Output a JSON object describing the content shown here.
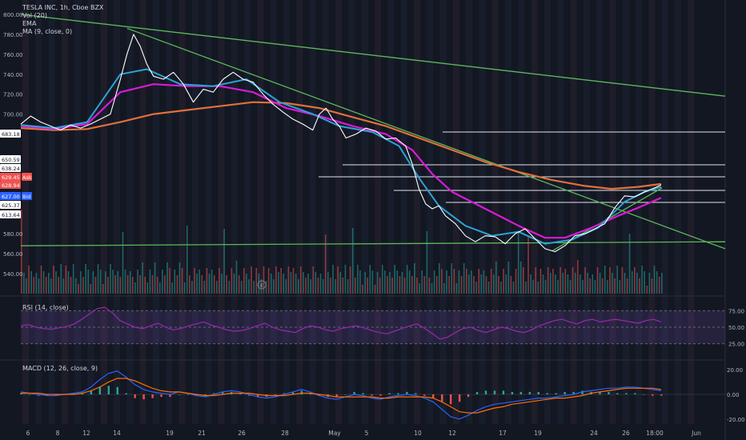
{
  "legend": {
    "title": "TESLA INC, 1h, Cboe BZX",
    "vol": "Vol (20)",
    "ema": "EMA",
    "ma": "MA (9, close, 0)",
    "rsi": "RSI (14, close)",
    "macd": "MACD (12, 26, close, 9)"
  },
  "colors": {
    "background": "#131722",
    "trendline": "#5cb85c",
    "ema": "#e0703a",
    "sma_magenta": "#d81bd6",
    "sma_blue": "#2ca3d6",
    "price_white": "#ffffff",
    "volume_up": "#26a69a",
    "volume_down": "#ef5350",
    "rsi": "#9c27b0",
    "macd": "#2962ff",
    "signal": "#ff6d00"
  },
  "chart_data": [
    {
      "type": "line",
      "name": "price",
      "y_ticks": [
        800,
        780,
        760,
        740,
        720,
        700,
        580,
        560,
        540
      ],
      "x_ticks": [
        "6",
        "8",
        "12",
        "14",
        "19",
        "21",
        "26",
        "28",
        "May",
        "5",
        "10",
        "12",
        "17",
        "19",
        "24",
        "26",
        "18:00",
        "Jun"
      ],
      "price_labels": [
        {
          "text": "683.18",
          "style": "white"
        },
        {
          "text": "650.59",
          "style": "white"
        },
        {
          "text": "638.24",
          "style": "white"
        },
        {
          "text": "629.45",
          "style": "ask"
        },
        {
          "text": "Ask",
          "style": "ask_badge"
        },
        {
          "text": "628.94",
          "style": "red"
        },
        {
          "text": "627.00",
          "style": "bid"
        },
        {
          "text": "Bid",
          "style": "bid_badge"
        },
        {
          "text": "625.37",
          "style": "white"
        },
        {
          "text": "613.64",
          "style": "white"
        }
      ],
      "close_path": [
        [
          0,
          690
        ],
        [
          3,
          698
        ],
        [
          6,
          692
        ],
        [
          9,
          688
        ],
        [
          12,
          684
        ],
        [
          15,
          689
        ],
        [
          18,
          686
        ],
        [
          21,
          690
        ],
        [
          24,
          695
        ],
        [
          27,
          700
        ],
        [
          30,
          735
        ],
        [
          32,
          760
        ],
        [
          34,
          780
        ],
        [
          36,
          768
        ],
        [
          38,
          750
        ],
        [
          40,
          738
        ],
        [
          43,
          735
        ],
        [
          46,
          742
        ],
        [
          49,
          730
        ],
        [
          52,
          712
        ],
        [
          55,
          725
        ],
        [
          58,
          722
        ],
        [
          61,
          735
        ],
        [
          64,
          742
        ],
        [
          67,
          735
        ],
        [
          70,
          732
        ],
        [
          73,
          720
        ],
        [
          76,
          710
        ],
        [
          79,
          702
        ],
        [
          82,
          695
        ],
        [
          85,
          690
        ],
        [
          88,
          684
        ],
        [
          90,
          700
        ],
        [
          92,
          706
        ],
        [
          94,
          695
        ],
        [
          96,
          688
        ],
        [
          98,
          676
        ],
        [
          101,
          680
        ],
        [
          104,
          686
        ],
        [
          107,
          683
        ],
        [
          110,
          675
        ],
        [
          113,
          676
        ],
        [
          116,
          668
        ],
        [
          118,
          650
        ],
        [
          120,
          625
        ],
        [
          122,
          610
        ],
        [
          124,
          605
        ],
        [
          126,
          608
        ],
        [
          128,
          598
        ],
        [
          131,
          590
        ],
        [
          134,
          578
        ],
        [
          137,
          572
        ],
        [
          140,
          578
        ],
        [
          143,
          577
        ],
        [
          146,
          570
        ],
        [
          149,
          580
        ],
        [
          152,
          585
        ],
        [
          155,
          575
        ],
        [
          158,
          565
        ],
        [
          161,
          562
        ],
        [
          164,
          568
        ],
        [
          167,
          578
        ],
        [
          170,
          580
        ],
        [
          173,
          585
        ],
        [
          176,
          590
        ],
        [
          179,
          606
        ],
        [
          182,
          618
        ],
        [
          185,
          617
        ],
        [
          188,
          622
        ],
        [
          191,
          626
        ],
        [
          193,
          629
        ]
      ],
      "x_range": [
        0,
        193
      ],
      "y_range": [
        520,
        808
      ],
      "ema_path": [
        [
          0,
          686
        ],
        [
          10,
          684
        ],
        [
          20,
          685
        ],
        [
          30,
          692
        ],
        [
          40,
          700
        ],
        [
          50,
          704
        ],
        [
          60,
          708
        ],
        [
          70,
          712
        ],
        [
          80,
          711
        ],
        [
          90,
          706
        ],
        [
          100,
          697
        ],
        [
          110,
          688
        ],
        [
          120,
          676
        ],
        [
          130,
          664
        ],
        [
          140,
          652
        ],
        [
          150,
          642
        ],
        [
          160,
          634
        ],
        [
          170,
          628
        ],
        [
          178,
          625
        ],
        [
          186,
          627
        ],
        [
          193,
          630
        ]
      ],
      "sma_magenta_path": [
        [
          0,
          688
        ],
        [
          10,
          685
        ],
        [
          20,
          690
        ],
        [
          30,
          722
        ],
        [
          40,
          730
        ],
        [
          50,
          728
        ],
        [
          60,
          728
        ],
        [
          70,
          722
        ],
        [
          80,
          706
        ],
        [
          90,
          698
        ],
        [
          100,
          688
        ],
        [
          110,
          680
        ],
        [
          118,
          664
        ],
        [
          124,
          640
        ],
        [
          130,
          622
        ],
        [
          140,
          605
        ],
        [
          150,
          588
        ],
        [
          158,
          576
        ],
        [
          164,
          576
        ],
        [
          172,
          586
        ],
        [
          180,
          598
        ],
        [
          186,
          606
        ],
        [
          193,
          616
        ]
      ],
      "sma_blue_path": [
        [
          0,
          689
        ],
        [
          10,
          686
        ],
        [
          20,
          692
        ],
        [
          30,
          740
        ],
        [
          38,
          745
        ],
        [
          48,
          730
        ],
        [
          58,
          728
        ],
        [
          68,
          735
        ],
        [
          78,
          712
        ],
        [
          88,
          700
        ],
        [
          96,
          688
        ],
        [
          106,
          682
        ],
        [
          114,
          668
        ],
        [
          120,
          636
        ],
        [
          126,
          608
        ],
        [
          134,
          588
        ],
        [
          142,
          578
        ],
        [
          150,
          582
        ],
        [
          158,
          570
        ],
        [
          166,
          574
        ],
        [
          174,
          586
        ],
        [
          182,
          612
        ],
        [
          188,
          622
        ],
        [
          193,
          627
        ]
      ],
      "trendlines": [
        {
          "from": [
            0,
            800
          ],
          "to": [
            212,
            718
          ]
        },
        {
          "from": [
            32,
            786
          ],
          "to": [
            212,
            565
          ]
        },
        {
          "from": [
            0,
            568
          ],
          "to": [
            212,
            572
          ]
        },
        {
          "from": [
            160,
            563
          ],
          "to": [
            193,
            626
          ]
        }
      ]
    },
    {
      "type": "line",
      "name": "RSI (14, close)",
      "y_ticks": [
        75.0,
        50.0,
        25.0
      ],
      "y_range": [
        15,
        85
      ],
      "x_range": [
        0,
        193
      ],
      "values": [
        52,
        54,
        50,
        48,
        47,
        49,
        51,
        55,
        62,
        70,
        78,
        80,
        72,
        60,
        55,
        50,
        48,
        52,
        56,
        50,
        46,
        48,
        52,
        55,
        58,
        53,
        50,
        46,
        44,
        45,
        48,
        52,
        56,
        50,
        46,
        44,
        42,
        48,
        52,
        50,
        46,
        44,
        48,
        50,
        52,
        49,
        45,
        42,
        40,
        44,
        48,
        52,
        55,
        48,
        40,
        32,
        35,
        42,
        48,
        50,
        45,
        42,
        46,
        50,
        48,
        44,
        42,
        46,
        52,
        56,
        60,
        62,
        58,
        55,
        60,
        62,
        58,
        60,
        62,
        60,
        58,
        56,
        60,
        62,
        58
      ]
    },
    {
      "type": "line",
      "name": "MACD (12, 26, close, 9)",
      "y_ticks": [
        20.0,
        0.0,
        -20.0
      ],
      "y_range": [
        -24,
        24
      ],
      "x_range": [
        0,
        193
      ],
      "macd": [
        2,
        1,
        0,
        -1,
        -1,
        0,
        1,
        2,
        6,
        12,
        17,
        19,
        14,
        8,
        4,
        2,
        1,
        0,
        2,
        1,
        -1,
        -2,
        0,
        2,
        3,
        2,
        0,
        -2,
        -3,
        -2,
        0,
        2,
        4,
        2,
        -1,
        -3,
        -4,
        -2,
        0,
        -1,
        -3,
        -4,
        -2,
        -1,
        0,
        -1,
        -3,
        -6,
        -12,
        -18,
        -20,
        -17,
        -13,
        -10,
        -8,
        -7,
        -6,
        -5,
        -4,
        -3,
        -3,
        -2,
        -1,
        0,
        2,
        3,
        4,
        5,
        5,
        6,
        6,
        5,
        4,
        3
      ],
      "signal": [
        1,
        1,
        1,
        0,
        0,
        0,
        0,
        1,
        3,
        6,
        10,
        13,
        13,
        11,
        8,
        5,
        3,
        2,
        2,
        1,
        0,
        -1,
        -1,
        0,
        1,
        1,
        1,
        0,
        -1,
        -1,
        -1,
        0,
        1,
        1,
        0,
        -1,
        -2,
        -2,
        -2,
        -2,
        -2,
        -3,
        -3,
        -2,
        -2,
        -2,
        -2,
        -3,
        -6,
        -10,
        -14,
        -15,
        -15,
        -13,
        -11,
        -10,
        -8,
        -7,
        -6,
        -5,
        -4,
        -3,
        -3,
        -2,
        -1,
        1,
        2,
        3,
        4,
        5,
        5,
        5,
        5,
        4
      ]
    }
  ]
}
